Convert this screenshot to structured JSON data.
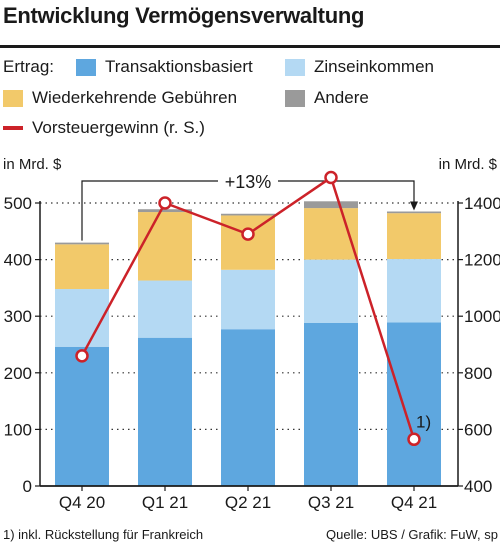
{
  "title": "Entwicklung Vermögensverwaltung",
  "legend": {
    "prefix": "Ertrag:",
    "items": [
      {
        "label": "Transaktionsbasiert",
        "color": "#5ea7df"
      },
      {
        "label": "Zinseinkommen",
        "color": "#b4d9f3"
      },
      {
        "label": "Wiederkehrende Gebühren",
        "color": "#f2c96a"
      },
      {
        "label": "Andere",
        "color": "#9a9a9a"
      },
      {
        "label": "Vorsteuergewinn (r. S.)",
        "color": "#cc2229"
      }
    ]
  },
  "chart_data": {
    "type": "bar",
    "stacked": true,
    "categories": [
      "Q4 20",
      "Q1 21",
      "Q2 21",
      "Q3 21",
      "Q4 21"
    ],
    "series": [
      {
        "name": "Transaktionsbasiert",
        "values": [
          246,
          262,
          277,
          288,
          289
        ]
      },
      {
        "name": "Zinseinkommen",
        "values": [
          102,
          101,
          105,
          112,
          112
        ]
      },
      {
        "name": "Wiederkehrende Gebühren",
        "values": [
          79,
          121,
          96,
          91,
          81
        ]
      },
      {
        "name": "Andere",
        "values": [
          3,
          5,
          3,
          12,
          3
        ]
      }
    ],
    "line_series": {
      "name": "Vorsteuergewinn (r. S.)",
      "values": [
        860,
        1400,
        1290,
        1490,
        565
      ],
      "axis": "right"
    },
    "ylabel_left": "in Mrd. $",
    "ylabel_right": "in Mrd. $",
    "ylim_left": [
      0,
      500
    ],
    "yticks_left": [
      0,
      100,
      200,
      300,
      400,
      500
    ],
    "ylim_right": [
      400,
      1400
    ],
    "yticks_right": [
      400,
      600,
      800,
      1000,
      1200,
      1400
    ],
    "annotations": [
      {
        "text": "+13%"
      },
      {
        "text": "1)"
      }
    ],
    "grid": "dotted horizontal"
  },
  "footer": {
    "note": "1) inkl. Rückstellung für Frankreich",
    "source": "Quelle: UBS / Grafik: FuW, sp"
  }
}
